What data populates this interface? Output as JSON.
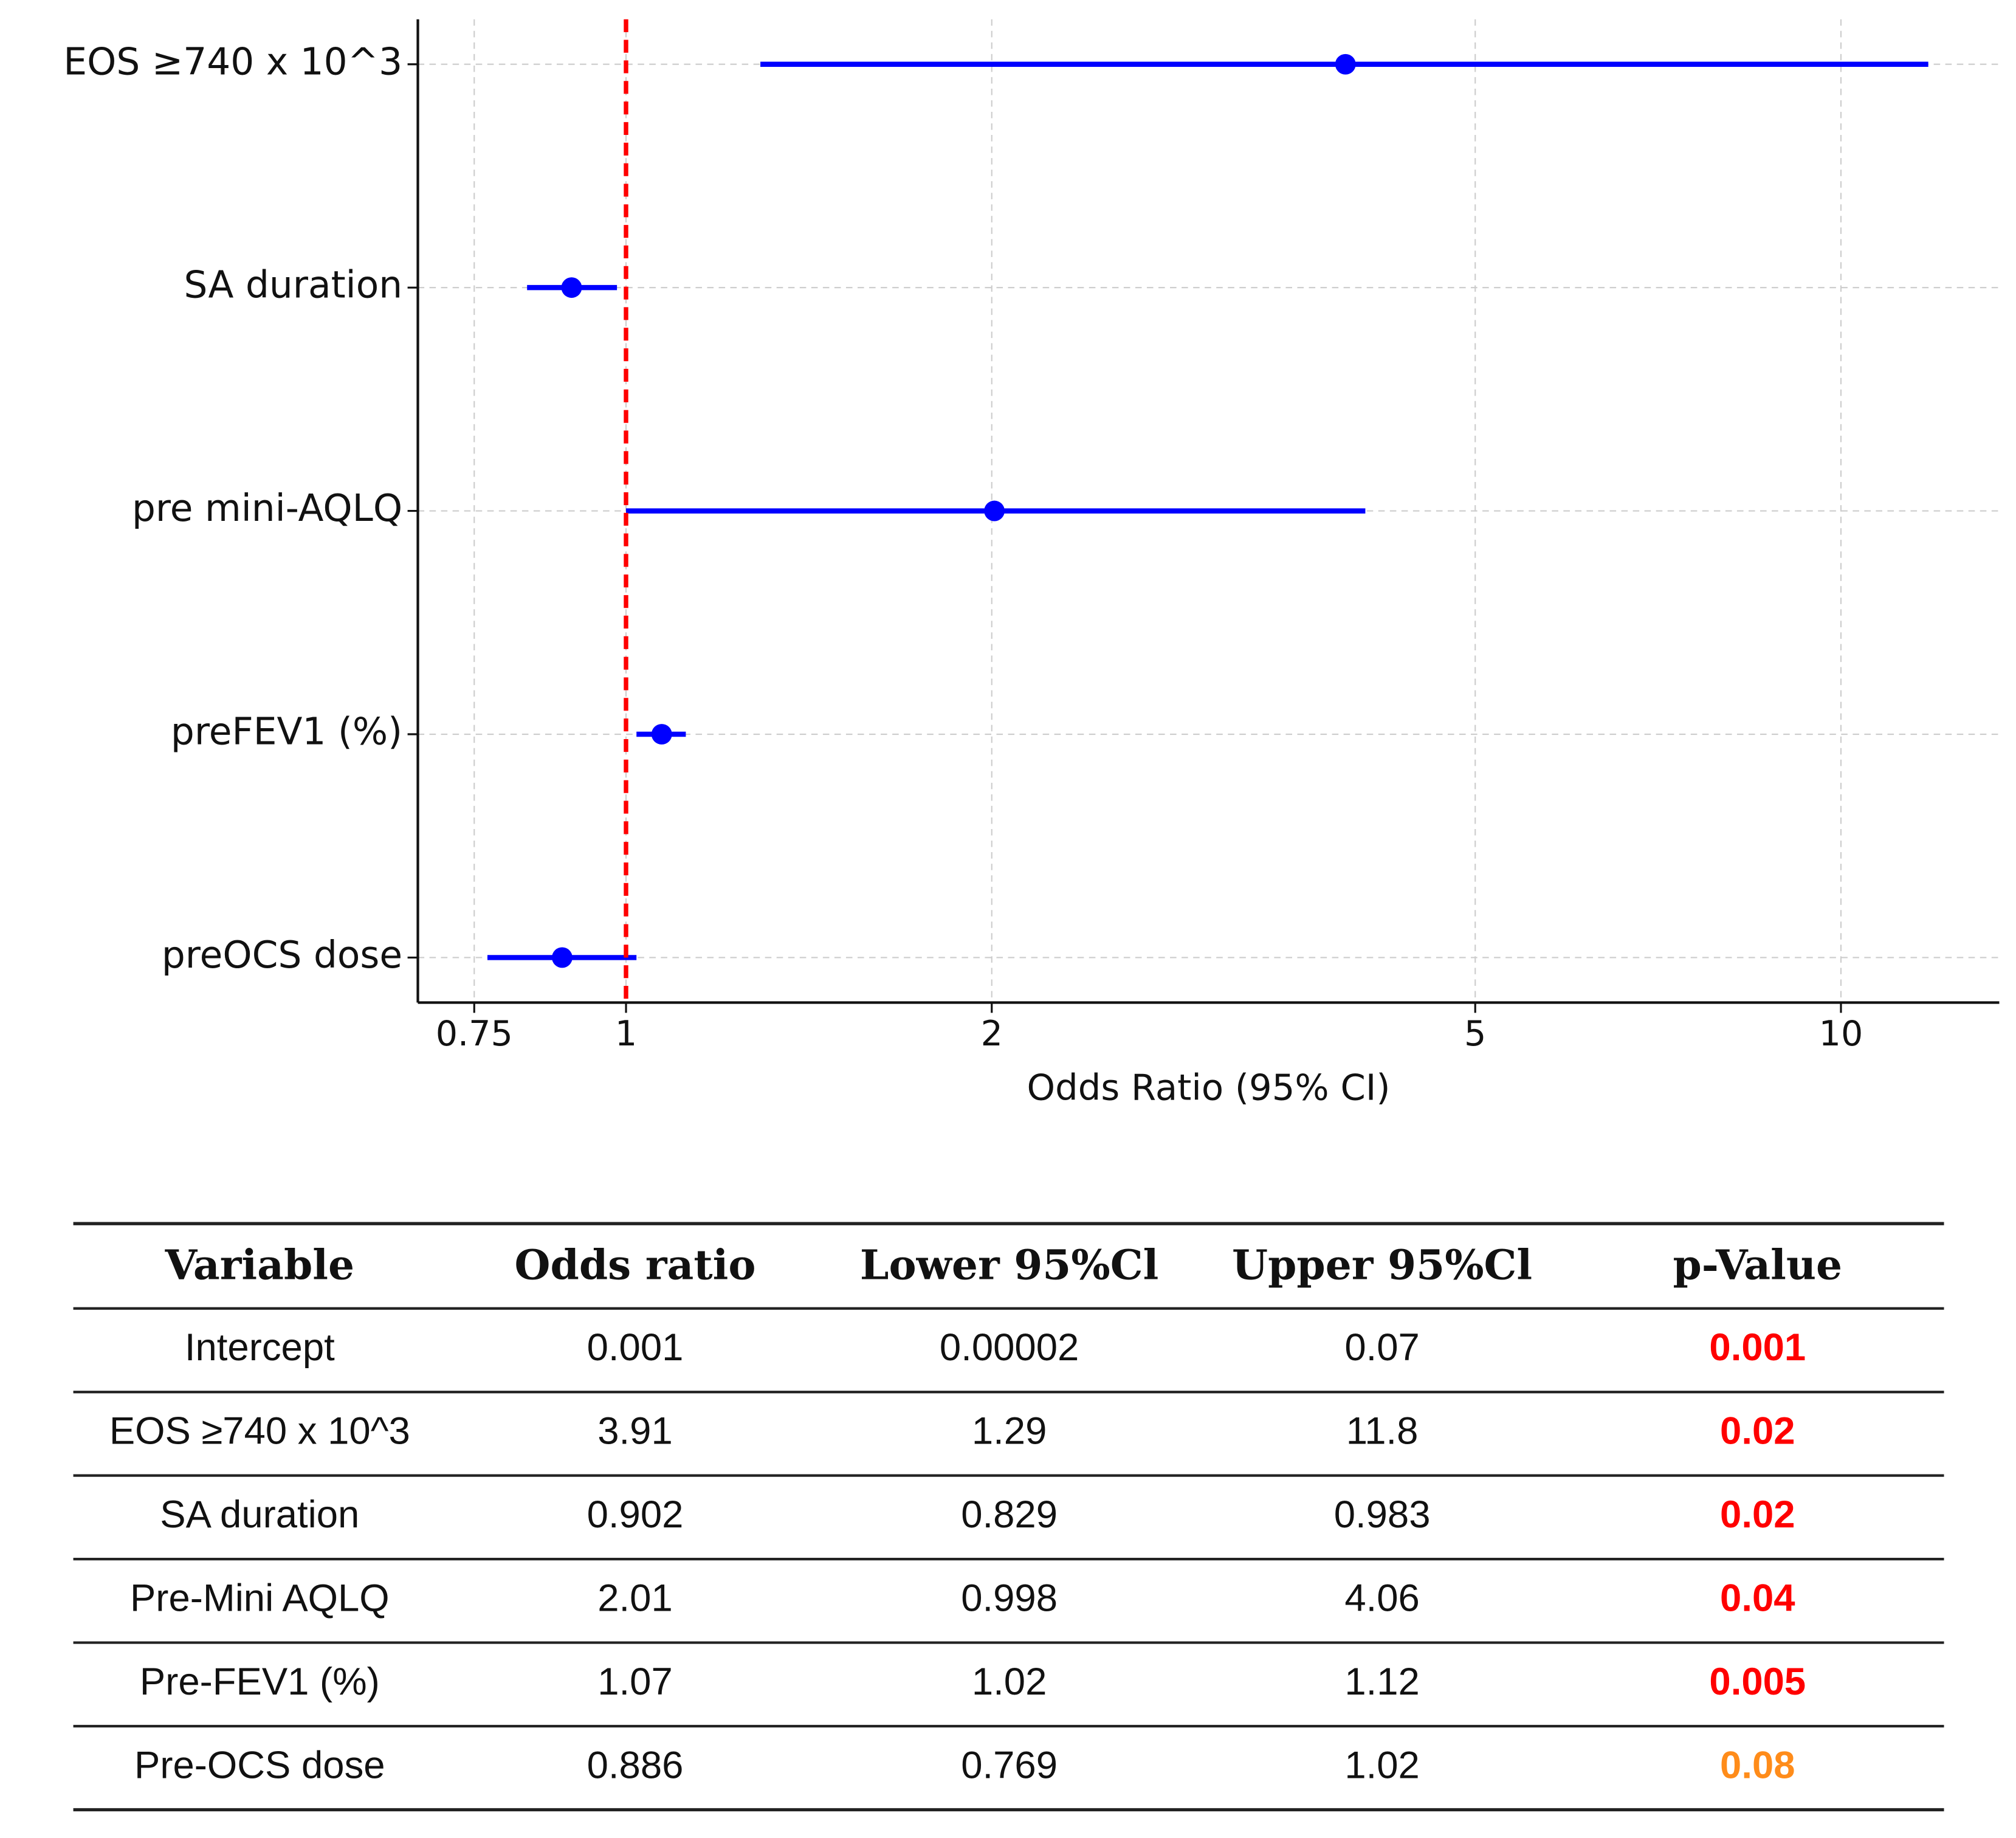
{
  "chart_data": {
    "type": "forest",
    "xlabel": "Odds Ratio (95% CI)",
    "categories": [
      "EOS ≥740 x 10^3",
      "SA duration",
      "pre mini-AQLQ",
      "preFEV1 (%)",
      "preOCS dose"
    ],
    "values": [
      3.91,
      0.902,
      2.01,
      1.07,
      0.886
    ],
    "lower": [
      1.29,
      0.829,
      1.0,
      1.02,
      0.769
    ],
    "upper": [
      11.8,
      0.983,
      4.06,
      1.12,
      1.02
    ],
    "color": "#0000ff",
    "refline": 1,
    "refline_color": "#ff0000",
    "xscale": "log",
    "xlim": [
      0.674,
      13.5
    ],
    "xticks": [
      0.75,
      1,
      2,
      5,
      10
    ],
    "grid": true
  },
  "table": {
    "columns": [
      "Variable",
      "Odds ratio",
      "Lower 95%Cl",
      "Upper 95%Cl",
      "p-Value"
    ],
    "rows": [
      [
        "Intercept",
        "0.001",
        "0.00002",
        "0.07",
        "0.001"
      ],
      [
        "EOS ≥740 x 10^3",
        "3.91",
        "1.29",
        "11.8",
        "0.02"
      ],
      [
        "SA duration",
        "0.902",
        "0.829",
        "0.983",
        "0.02"
      ],
      [
        "Pre-Mini AQLQ",
        "2.01",
        "0.998",
        "4.06",
        "0.04"
      ],
      [
        "Pre-FEV1 (%)",
        "1.07",
        "1.02",
        "1.12",
        "0.005"
      ],
      [
        "Pre-OCS dose",
        "0.886",
        "0.769",
        "1.02",
        "0.08"
      ]
    ],
    "p_colors": [
      "#ff0000",
      "#ff0000",
      "#ff0000",
      "#ff0000",
      "#ff0000",
      "#ff8c1a"
    ]
  }
}
